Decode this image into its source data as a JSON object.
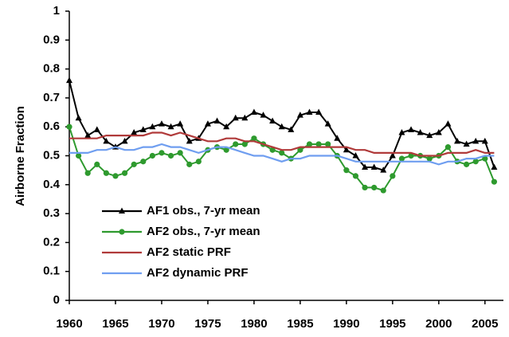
{
  "chart_data": {
    "type": "line",
    "y_label": "Airborne Fraction",
    "x": [
      1960,
      1961,
      1962,
      1963,
      1964,
      1965,
      1966,
      1967,
      1968,
      1969,
      1970,
      1971,
      1972,
      1973,
      1974,
      1975,
      1976,
      1977,
      1978,
      1979,
      1980,
      1981,
      1982,
      1983,
      1984,
      1985,
      1986,
      1987,
      1988,
      1989,
      1990,
      1991,
      1992,
      1993,
      1994,
      1995,
      1996,
      1997,
      1998,
      1999,
      2000,
      2001,
      2002,
      2003,
      2004,
      2005,
      2006
    ],
    "xlim": [
      1960,
      2007
    ],
    "xticks": [
      1960,
      1965,
      1970,
      1975,
      1980,
      1985,
      1990,
      1995,
      2000,
      2005
    ],
    "ylim": [
      0,
      1
    ],
    "yticks": [
      0,
      0.1,
      0.2,
      0.3,
      0.4,
      0.5,
      0.6,
      0.7,
      0.8,
      0.9,
      1
    ],
    "legend": "lower left",
    "series": [
      {
        "name": "AF1 obs., 7-yr mean",
        "color": "#000000",
        "marker": "triangle",
        "values": [
          0.76,
          0.63,
          0.57,
          0.59,
          0.55,
          0.53,
          0.55,
          0.58,
          0.59,
          0.6,
          0.61,
          0.6,
          0.61,
          0.55,
          0.56,
          0.61,
          0.62,
          0.6,
          0.63,
          0.63,
          0.65,
          0.64,
          0.62,
          0.6,
          0.59,
          0.64,
          0.65,
          0.65,
          0.61,
          0.56,
          0.52,
          0.5,
          0.46,
          0.46,
          0.45,
          0.5,
          0.58,
          0.59,
          0.58,
          0.57,
          0.58,
          0.61,
          0.55,
          0.54,
          0.55,
          0.55,
          0.46
        ]
      },
      {
        "name": "AF2 obs., 7-yr mean",
        "color": "#2e9a2e",
        "marker": "circle",
        "values": [
          0.6,
          0.5,
          0.44,
          0.47,
          0.44,
          0.43,
          0.44,
          0.47,
          0.48,
          0.5,
          0.51,
          0.5,
          0.51,
          0.47,
          0.48,
          0.52,
          0.53,
          0.52,
          0.54,
          0.54,
          0.56,
          0.54,
          0.52,
          0.51,
          0.49,
          0.52,
          0.54,
          0.54,
          0.54,
          0.5,
          0.45,
          0.43,
          0.39,
          0.39,
          0.38,
          0.43,
          0.49,
          0.5,
          0.5,
          0.49,
          0.5,
          0.53,
          0.48,
          0.47,
          0.48,
          0.49,
          0.41
        ]
      },
      {
        "name": "AF2 static PRF",
        "color": "#b03a3a",
        "values": [
          0.56,
          0.56,
          0.56,
          0.56,
          0.57,
          0.57,
          0.57,
          0.57,
          0.57,
          0.58,
          0.58,
          0.57,
          0.58,
          0.57,
          0.56,
          0.55,
          0.55,
          0.56,
          0.56,
          0.55,
          0.55,
          0.54,
          0.53,
          0.52,
          0.52,
          0.53,
          0.53,
          0.53,
          0.53,
          0.53,
          0.53,
          0.52,
          0.52,
          0.51,
          0.51,
          0.51,
          0.51,
          0.51,
          0.5,
          0.5,
          0.5,
          0.51,
          0.51,
          0.51,
          0.52,
          0.51,
          0.51
        ]
      },
      {
        "name": "AF2 dynamic PRF",
        "color": "#6f9ef0",
        "values": [
          0.51,
          0.51,
          0.51,
          0.52,
          0.52,
          0.53,
          0.52,
          0.52,
          0.53,
          0.53,
          0.54,
          0.53,
          0.53,
          0.52,
          0.51,
          0.52,
          0.53,
          0.53,
          0.52,
          0.51,
          0.5,
          0.5,
          0.49,
          0.48,
          0.49,
          0.49,
          0.5,
          0.5,
          0.5,
          0.5,
          0.49,
          0.48,
          0.48,
          0.48,
          0.48,
          0.48,
          0.48,
          0.48,
          0.48,
          0.48,
          0.47,
          0.48,
          0.48,
          0.49,
          0.49,
          0.5,
          0.5
        ]
      }
    ]
  }
}
